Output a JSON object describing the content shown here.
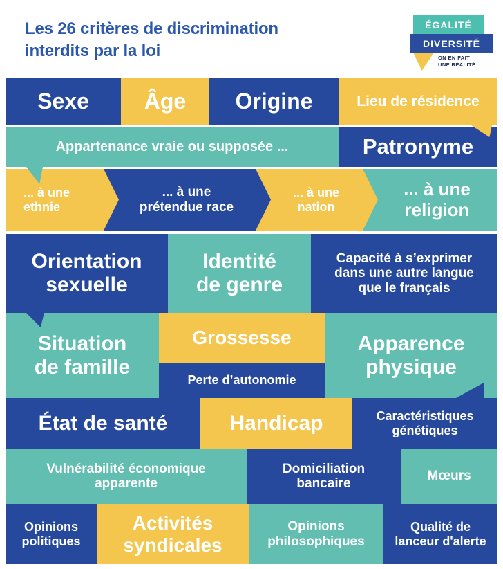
{
  "palette": {
    "blue": "#26499D",
    "teal": "#61BEB0",
    "yellow": "#F4C64E",
    "title_blue": "#2B57AC",
    "tagline_navy": "#212F5A",
    "background": "#FFFFFF",
    "tile_text": "#FFFFFF"
  },
  "header": {
    "title": "Les 26 critères de discrimination\ninterdits par la loi",
    "logo": {
      "line1": "ÉGALITÉ",
      "line2": "DIVERSITÉ",
      "tagline": "ON EN FAIT\nUNE RÉALITÉ"
    }
  },
  "tiles": {
    "sexe": {
      "label": "Sexe",
      "color": "blue"
    },
    "age": {
      "label": "Âge",
      "color": "yellow"
    },
    "origine": {
      "label": "Origine",
      "color": "blue"
    },
    "lieu": {
      "label": "Lieu de résidence",
      "color": "yellow"
    },
    "appartenance": {
      "label": "Appartenance vraie ou supposée ...",
      "color": "teal"
    },
    "patronyme": {
      "label": "Patronyme",
      "color": "blue"
    },
    "ethnie": {
      "label": "... à une\nethnie",
      "color": "yellow"
    },
    "race": {
      "label": "... à une\nprétendue race",
      "color": "blue"
    },
    "nation": {
      "label": "... à une\nnation",
      "color": "yellow"
    },
    "religion": {
      "label": "... à une\nreligion",
      "color": "teal"
    },
    "orientation": {
      "label": "Orientation\nsexuelle",
      "color": "blue"
    },
    "identite": {
      "label": "Identité\nde genre",
      "color": "teal"
    },
    "capacite": {
      "label": "Capacité à s’exprimer\ndans une autre langue\nque le français",
      "color": "blue"
    },
    "situation": {
      "label": "Situation\nde famille",
      "color": "teal"
    },
    "grossesse": {
      "label": "Grossesse",
      "color": "yellow"
    },
    "perte": {
      "label": "Perte d’autonomie",
      "color": "blue"
    },
    "apparence": {
      "label": "Apparence\nphysique",
      "color": "teal"
    },
    "etat": {
      "label": "État de santé",
      "color": "blue"
    },
    "handicap": {
      "label": "Handicap",
      "color": "yellow"
    },
    "caracteristiques": {
      "label": "Caractéristiques\ngénétiques",
      "color": "blue"
    },
    "vulnerabilite": {
      "label": "Vulnérabilité économique\napparente",
      "color": "teal"
    },
    "domiciliation": {
      "label": "Domiciliation\nbancaire",
      "color": "blue"
    },
    "moeurs": {
      "label": "Mœurs",
      "color": "teal"
    },
    "op_politiques": {
      "label": "Opinions\npolitiques",
      "color": "blue"
    },
    "activites": {
      "label": "Activités\nsyndicales",
      "color": "yellow"
    },
    "op_philosophiques": {
      "label": "Opinions\nphilosophiques",
      "color": "teal"
    },
    "qualite": {
      "label": "Qualité de\nlanceur d'alerte",
      "color": "blue"
    }
  }
}
